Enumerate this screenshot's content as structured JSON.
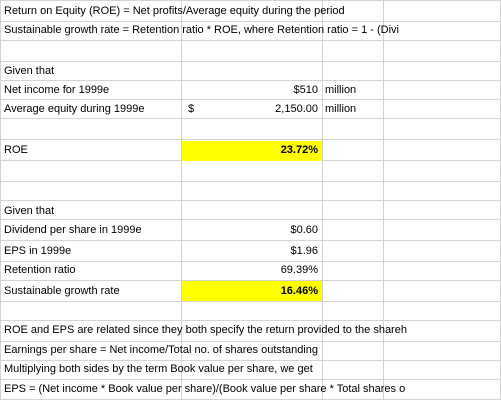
{
  "lines": {
    "roe_formula": "Return on Equity (ROE) = Net profits/Average equity during the period",
    "sgr_formula": "Sustainable growth rate = Retention ratio * ROE, where Retention ratio = 1 - (Divi",
    "given_1": "Given that",
    "net_income_label": "Net income for 1999e",
    "net_income_value": "$510",
    "net_income_unit": "million",
    "avg_equity_label": "Average equity during 1999e",
    "avg_equity_currency": "$",
    "avg_equity_value": "2,150.00",
    "avg_equity_unit": "million",
    "roe_label": "ROE",
    "roe_value": "23.72%",
    "given_2": "Given that",
    "dps_label": "Dividend per share in 1999e",
    "dps_value": "$0.60",
    "eps_label": "EPS in 1999e",
    "eps_value": "$1.96",
    "retention_label": "Retention ratio",
    "retention_value": "69.39%",
    "sgr_label": "Sustainable growth rate",
    "sgr_value": "16.46%",
    "note_1": "ROE and EPS are related since they both specify the return provided to the shareh",
    "note_2": "Earnings per share = Net income/Total no. of shares outstanding",
    "note_3": "Multiplying both sides by the term Book value per share, we get",
    "note_4": "EPS = (Net income * Book value per share)/(Book value per share * Total shares o"
  },
  "colors": {
    "highlight": "#ffff00",
    "gridline": "#d4d4d4"
  }
}
